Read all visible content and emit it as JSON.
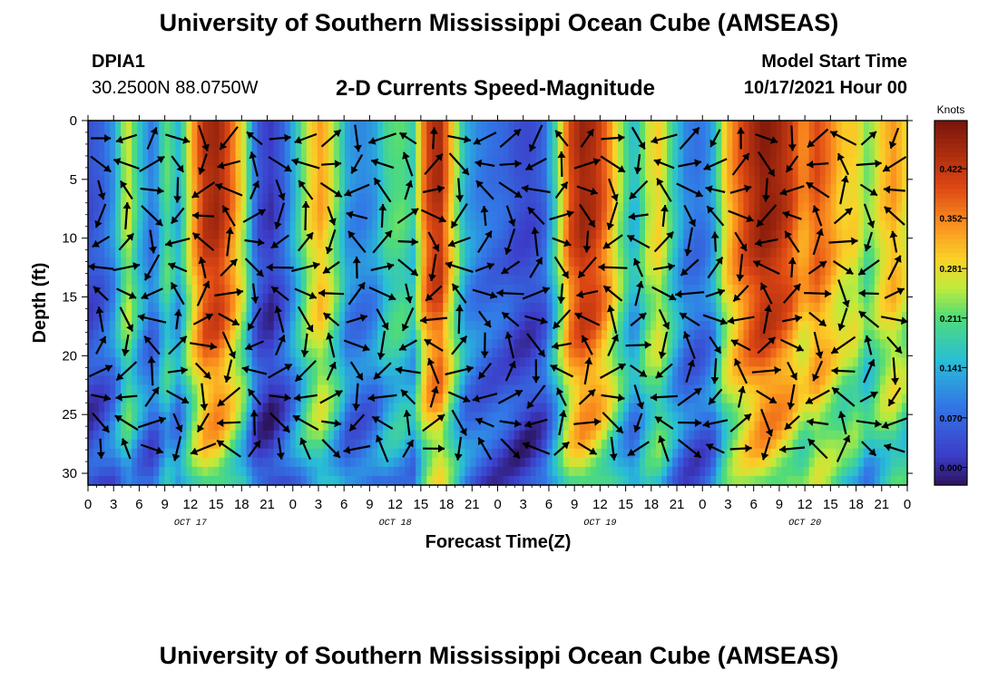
{
  "header": {
    "title": "University of Southern Mississippi Ocean Cube (AMSEAS)",
    "title_repeat": "University of Southern Mississippi Ocean Cube (AMSEAS)",
    "station_id": "DPIA1",
    "station_coords": "30.2500N  88.0750W",
    "chart_title": "2-D Currents Speed-Magnitude",
    "model_start_label": "Model Start Time",
    "model_start_value": "10/17/2021 Hour 00"
  },
  "chart_data": {
    "type": "heatmap",
    "title": "2-D Currents Speed-Magnitude",
    "xlabel": "Forecast Time(Z)",
    "ylabel": "Depth (ft)",
    "x_ticks": [
      "0",
      "3",
      "6",
      "9",
      "12",
      "15",
      "18",
      "21",
      "0",
      "3",
      "6",
      "9",
      "12",
      "15",
      "18",
      "21",
      "0",
      "3",
      "6",
      "9",
      "12",
      "15",
      "18",
      "21",
      "0",
      "3",
      "6",
      "9",
      "12",
      "15",
      "18",
      "21",
      "0"
    ],
    "day_labels": [
      "OCT 17",
      "OCT 18",
      "OCT 19",
      "OCT 20"
    ],
    "xlim_hours": [
      0,
      96
    ],
    "y_ticks": [
      0,
      5,
      10,
      15,
      20,
      25,
      30
    ],
    "ylim": [
      0,
      31
    ],
    "colorbar": {
      "label": "Knots",
      "ticks": [
        "0.422",
        "0.352",
        "0.281",
        "0.211",
        "0.141",
        "0.070",
        "0.000"
      ],
      "range": [
        -0.025,
        0.49
      ]
    },
    "speed_profile_knots": [
      0.04,
      0.06,
      0.12,
      0.28,
      0.16,
      0.08,
      0.22,
      0.14,
      0.32,
      0.44,
      0.46,
      0.38,
      0.26,
      0.05,
      0.01,
      0.06,
      0.16,
      0.28,
      0.34,
      0.24,
      0.12,
      0.1,
      0.12,
      0.2,
      0.22,
      0.18,
      0.4,
      0.46,
      0.3,
      0.14,
      0.1,
      0.08,
      0.07,
      0.04,
      0.03,
      0.06,
      0.2,
      0.4,
      0.46,
      0.44,
      0.36,
      0.24,
      0.14,
      0.26,
      0.3,
      0.18,
      0.1,
      0.08,
      0.12,
      0.3,
      0.38,
      0.44,
      0.48,
      0.46,
      0.42,
      0.34,
      0.4,
      0.36,
      0.3,
      0.3,
      0.22,
      0.3,
      0.34,
      0.28
    ],
    "vector_grid": {
      "columns": 32,
      "rows": 13,
      "first_hour": 1.5,
      "hour_step": 3,
      "first_depth": 1.5,
      "depth_step": 2.2
    }
  }
}
